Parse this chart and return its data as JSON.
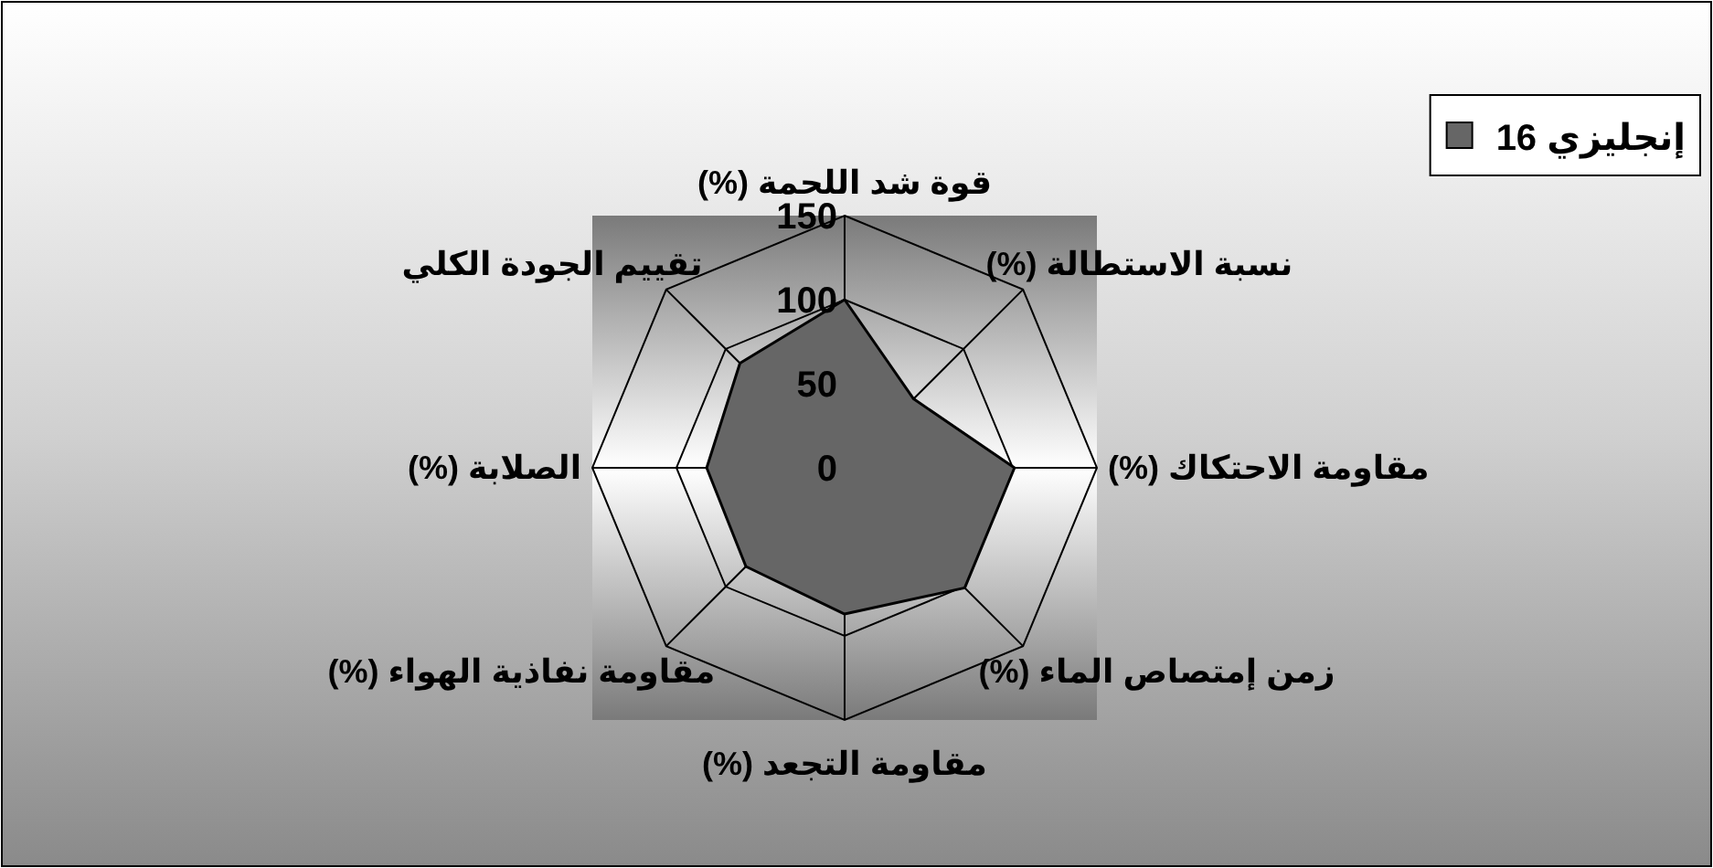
{
  "chart_data": {
    "type": "radar",
    "categories": [
      "قوة شد اللحمة (%)",
      "نسبة الاستطالة (%)",
      "مقاومة الاحتكاك (%)",
      "زمن إمتصاص الماء (%)",
      "مقاومة التجعد (%)",
      "مقاومة نفاذية الهواء (%)",
      "الصلابة (%)",
      "تقييم الجودة الكلي"
    ],
    "series": [
      {
        "name": "إنجليزي 16",
        "color": "#666666",
        "values": [
          100,
          58,
          101,
          101,
          87,
          83,
          82,
          88
        ]
      }
    ],
    "ylim": [
      0,
      150
    ],
    "yticks": [
      0,
      50,
      100,
      150
    ],
    "grid": true,
    "legend": "top right"
  }
}
